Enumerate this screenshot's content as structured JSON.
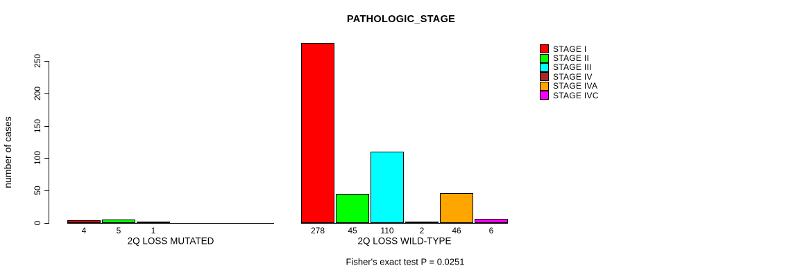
{
  "chart_data": {
    "type": "bar",
    "title": "PATHOLOGIC_STAGE",
    "ylabel": "number of cases",
    "ylim": [
      0,
      250
    ],
    "yticks": [
      0,
      50,
      100,
      150,
      200,
      250
    ],
    "grid": false,
    "legend_position": "right",
    "categories": [
      "STAGE I",
      "STAGE II",
      "STAGE III",
      "STAGE IV",
      "STAGE IVA",
      "STAGE IVC"
    ],
    "colors": [
      "#ff0000",
      "#00ff00",
      "#00ffff",
      "#a52a2a",
      "#ffa500",
      "#ff00ff"
    ],
    "groups": [
      {
        "label": "2Q LOSS MUTATED",
        "values": [
          4,
          5,
          1,
          0,
          0,
          0
        ],
        "bar_labels": [
          "4",
          "5",
          "1",
          "",
          "",
          ""
        ]
      },
      {
        "label": "2Q LOSS WILD-TYPE",
        "values": [
          278,
          45,
          110,
          2,
          46,
          6
        ],
        "bar_labels": [
          "278",
          "45",
          "110",
          "2",
          "46",
          "6"
        ]
      }
    ],
    "footer": "Fisher's exact test P = 0.0251"
  }
}
